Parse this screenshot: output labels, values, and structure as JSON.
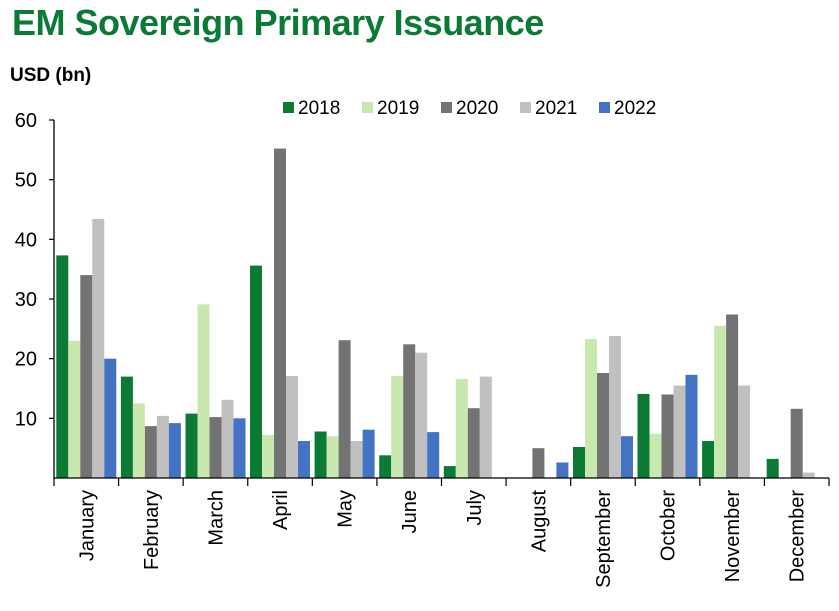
{
  "header": {
    "title": "EM Sovereign Primary Issuance",
    "unit_label": "USD (bn)"
  },
  "chart_data": {
    "type": "bar",
    "title": "EM Sovereign Primary Issuance",
    "ylabel": "USD (bn)",
    "xlabel": "",
    "ylim": [
      0,
      60
    ],
    "yticks": [
      10,
      20,
      30,
      40,
      50,
      60
    ],
    "grid": false,
    "legend_position": "top",
    "categories": [
      "January",
      "February",
      "March",
      "April",
      "May",
      "June",
      "July",
      "August",
      "September",
      "October",
      "November",
      "December"
    ],
    "series": [
      {
        "name": "2018",
        "color": "#0a7a35",
        "values": [
          37.3,
          17.0,
          10.8,
          35.6,
          7.8,
          3.8,
          2.0,
          0,
          5.2,
          14.1,
          6.2,
          3.2
        ]
      },
      {
        "name": "2019",
        "color": "#c9e8b0",
        "values": [
          23.0,
          12.5,
          29.1,
          7.2,
          7.0,
          17.1,
          16.6,
          0,
          23.3,
          7.4,
          25.5,
          0
        ]
      },
      {
        "name": "2020",
        "color": "#737373",
        "values": [
          34.0,
          8.7,
          10.2,
          55.2,
          23.1,
          22.4,
          11.7,
          5.0,
          17.6,
          14.0,
          27.4,
          11.6
        ]
      },
      {
        "name": "2021",
        "color": "#c0c0c0",
        "values": [
          43.4,
          10.4,
          13.1,
          17.1,
          6.2,
          21.0,
          17.0,
          0,
          23.8,
          15.5,
          15.5,
          0.9
        ]
      },
      {
        "name": "2022",
        "color": "#4472c4",
        "values": [
          20.0,
          9.2,
          10.0,
          6.2,
          8.1,
          7.7,
          0,
          2.6,
          7.0,
          17.3,
          0,
          0
        ]
      }
    ]
  }
}
